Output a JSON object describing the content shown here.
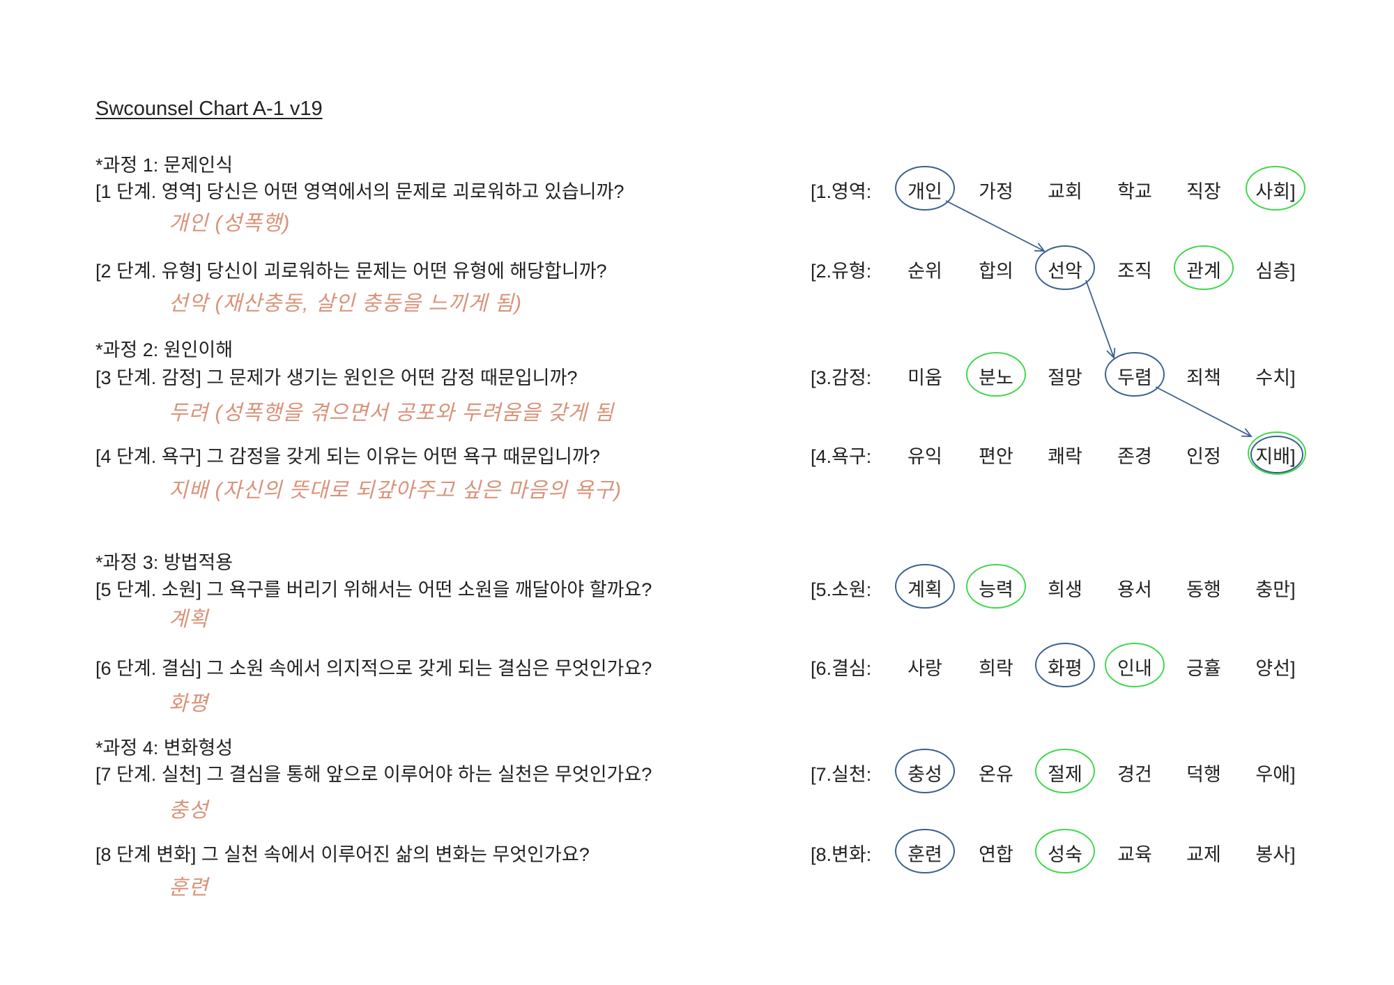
{
  "title": "Swcounsel Chart A-1 v19",
  "sections": [
    {
      "label": "*과정 1: 문제인식"
    },
    {
      "label": "*과정 2: 원인이해"
    },
    {
      "label": "*과정 3: 방법적용"
    },
    {
      "label": "*과정 4: 변화형성"
    }
  ],
  "steps": [
    {
      "question": "[1 단계. 영역] 당신은 어떤 영역에서의 문제로 괴로워하고 있습니까?",
      "answer": "개인 (성폭행)",
      "row_label": "[1.영역:",
      "options": [
        "개인",
        "가정",
        "교회",
        "학교",
        "직장",
        "사회]"
      ],
      "blue": 0,
      "green": 5
    },
    {
      "question": "[2 단계. 유형] 당신이 괴로워하는 문제는 어떤 유형에 해당합니까?",
      "answer": "선악 (재산충동, 살인 충동을 느끼게 됨)",
      "row_label": "[2.유형:",
      "options": [
        "순위",
        "합의",
        "선악",
        "조직",
        "관계",
        "심층]"
      ],
      "blue": 2,
      "green": 4
    },
    {
      "question": "[3 단계. 감정] 그 문제가 생기는 원인은 어떤 감정 때문입니까?",
      "answer": "두려 (성폭행을 겪으면서 공포와 두려움을 갖게 됨",
      "row_label": "[3.감정:",
      "options": [
        "미움",
        "분노",
        "절망",
        "두렴",
        "죄책",
        "수치]"
      ],
      "blue": 3,
      "green": 1
    },
    {
      "question": "[4 단계. 욕구] 그 감정을 갖게 되는 이유는 어떤 욕구 때문입니까?",
      "answer": "지배 (자신의 뜻대로 되갚아주고 싶은 마음의 욕구)",
      "row_label": "[4.욕구:",
      "options": [
        "유익",
        "편안",
        "쾌락",
        "존경",
        "인정",
        "지배]"
      ],
      "blue": 5,
      "green": 5
    },
    {
      "question": "[5 단계. 소원] 그 욕구를 버리기 위해서는 어떤 소원을 깨달아야 할까요?",
      "answer": "계획",
      "row_label": "[5.소원:",
      "options": [
        "계획",
        "능력",
        "희생",
        "용서",
        "동행",
        "충만]"
      ],
      "blue": 0,
      "green": 1
    },
    {
      "question": "[6 단계. 결심] 그 소원 속에서 의지적으로 갖게 되는 결심은 무엇인가요?",
      "answer": "화평",
      "row_label": "[6.결심:",
      "options": [
        "사랑",
        "희락",
        "화평",
        "인내",
        "긍휼",
        "양선]"
      ],
      "blue": 2,
      "green": 3
    },
    {
      "question": "[7 단계. 실천] 그 결심을 통해 앞으로 이루어야 하는 실천은 무엇인가요?",
      "answer": "충성",
      "row_label": "[7.실천:",
      "options": [
        "충성",
        "온유",
        "절제",
        "경건",
        "덕행",
        "우애]"
      ],
      "blue": 0,
      "green": 2
    },
    {
      "question": "[8 단계 변화] 그 실천 속에서 이루어진 삶의 변화는 무엇인가요?",
      "answer": "훈련",
      "row_label": "[8.변화:",
      "options": [
        "훈련",
        "연합",
        "성숙",
        "교육",
        "교제",
        "봉사]"
      ],
      "blue": 0,
      "green": 2
    }
  ],
  "colors": {
    "blue_circle": "#3b5f8f",
    "green_circle": "#3fd84a",
    "handwriting": "#d9937a",
    "connector": "#3b5f8f"
  }
}
